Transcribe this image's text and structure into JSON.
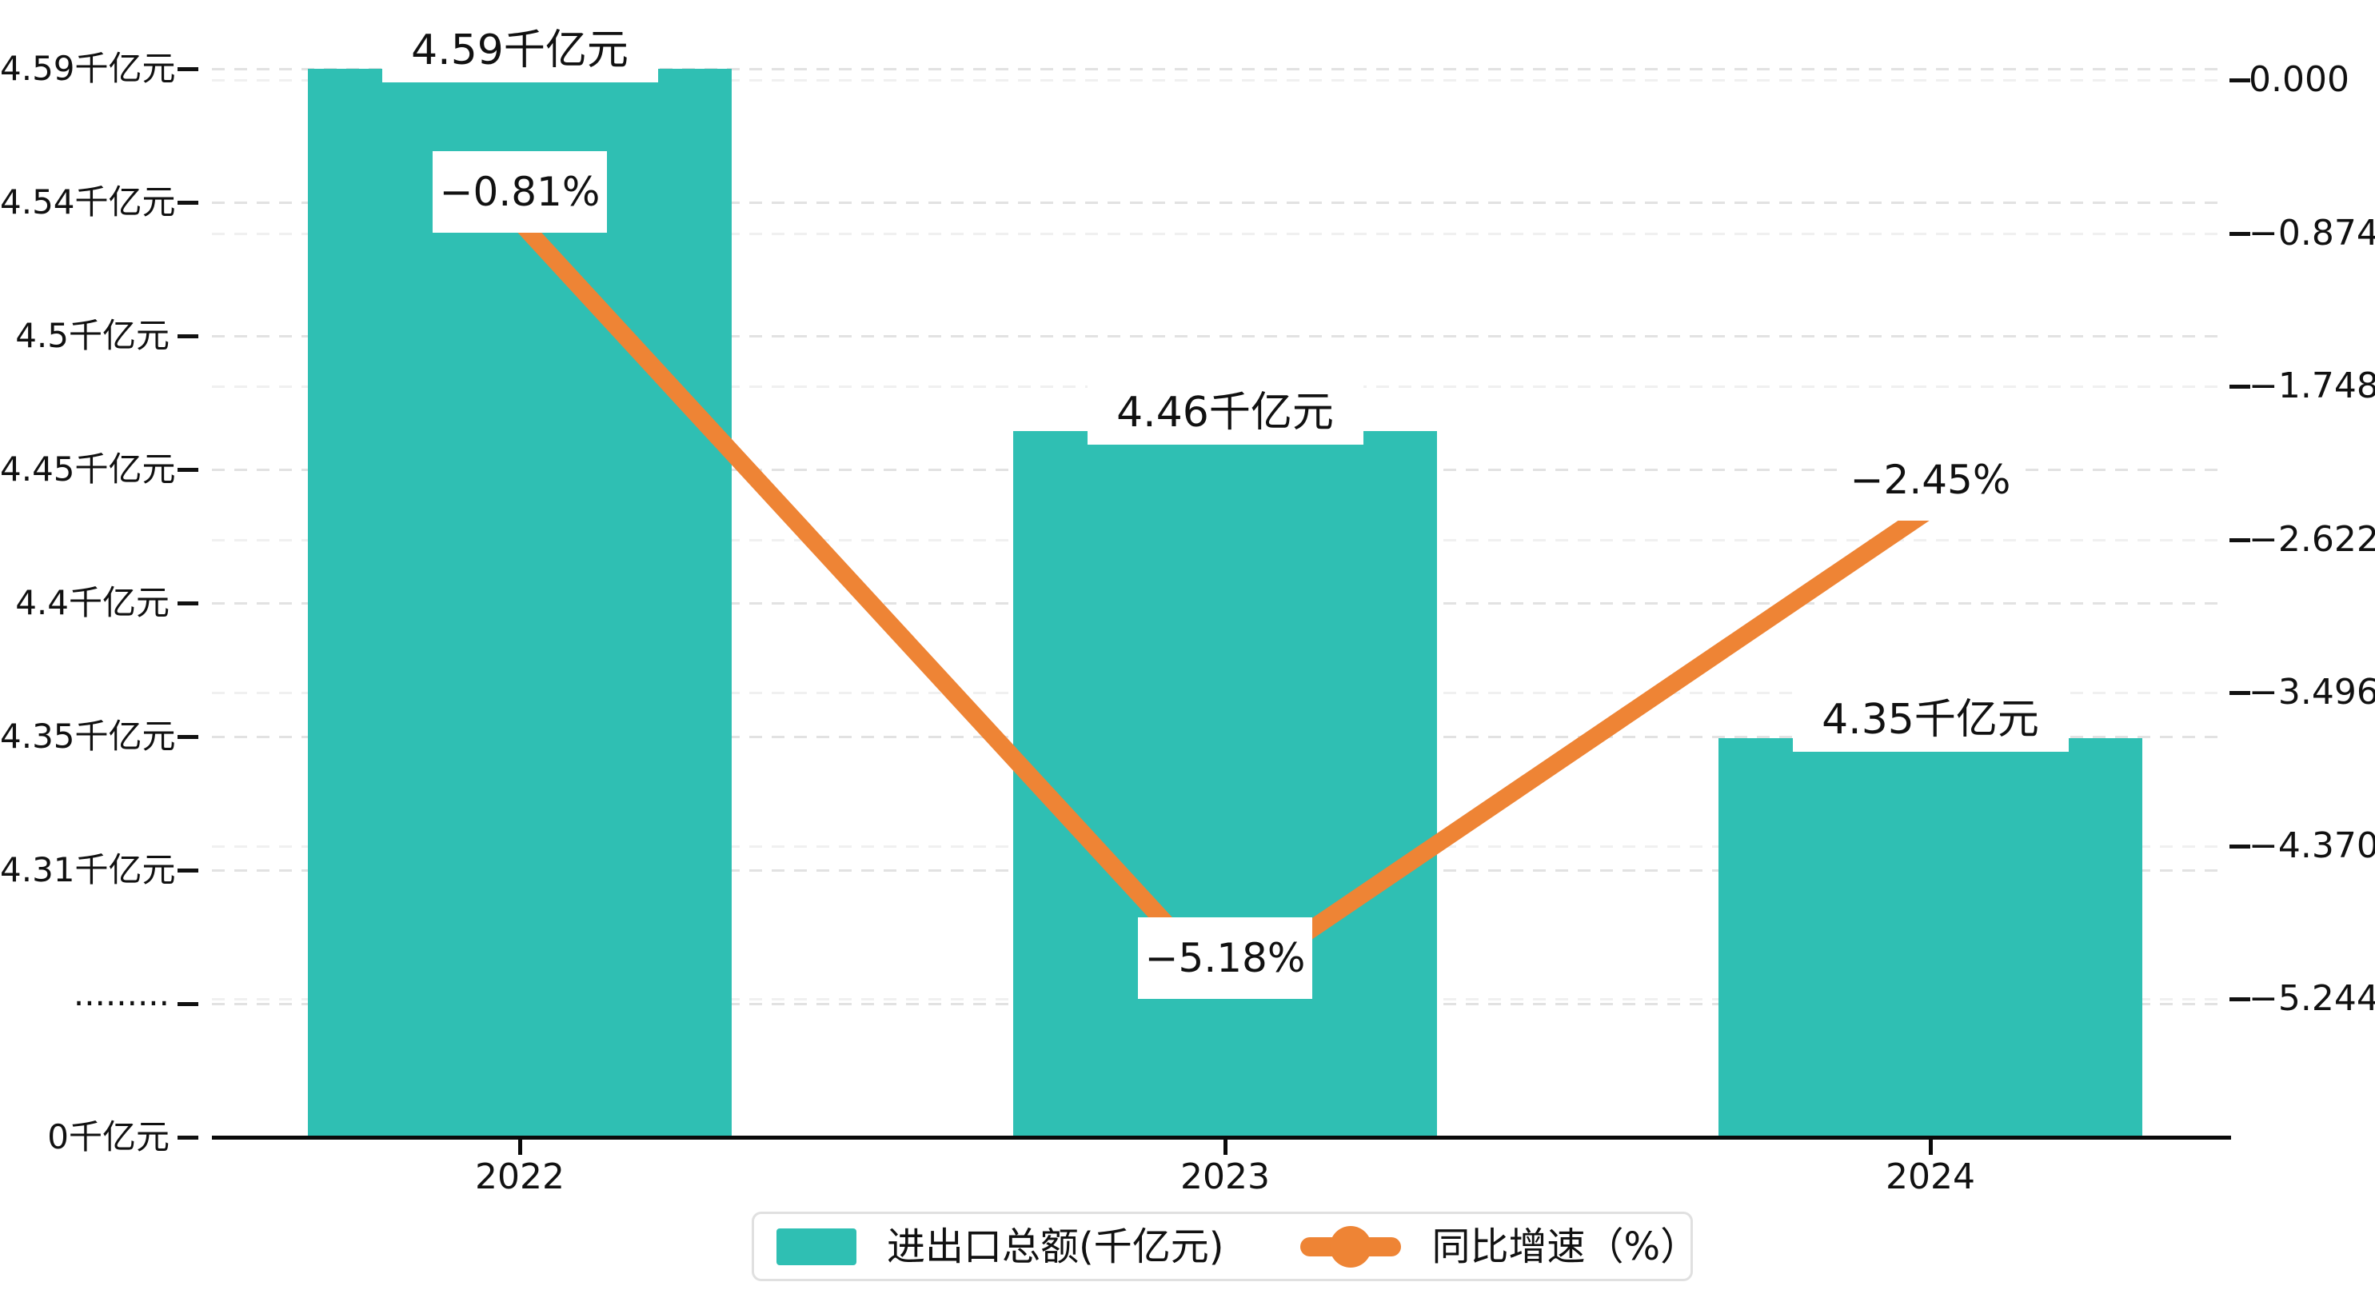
{
  "chart_data": {
    "type": "bar+line combo",
    "categories": [
      "2022",
      "2023",
      "2024"
    ],
    "series": [
      {
        "name": "进出口总额(千亿元)",
        "type": "bar",
        "values": [
          4.59,
          4.46,
          4.35
        ],
        "unit": "千亿元",
        "color": "#2FBFB3",
        "data_labels": [
          "4.59千亿元",
          "4.46千亿元",
          "4.35千亿元"
        ],
        "axis": "left"
      },
      {
        "name": "同比增速（%）",
        "type": "line",
        "values": [
          -0.81,
          -5.18,
          -2.45
        ],
        "unit": "%",
        "color": "#EE8435",
        "data_labels": [
          "−0.81%",
          "−5.18%",
          "−2.45%"
        ],
        "axis": "right"
      }
    ],
    "left_axis": {
      "tick_labels": [
        "4.59千亿元",
        "4.54千亿元",
        "4.5千亿元",
        "4.45千亿元",
        "4.4千亿元",
        "4.35千亿元",
        "4.31千亿元",
        "·········",
        "0千亿元"
      ],
      "broken_axis": true,
      "unit": "千亿元"
    },
    "right_axis": {
      "tick_labels": [
        "0.000",
        "−0.874",
        "−1.748",
        "−2.622",
        "−3.496",
        "−4.370",
        "−5.244"
      ],
      "range": [
        0,
        -5.244
      ],
      "step": -0.874,
      "unit": "%"
    },
    "legend": {
      "position": "bottom",
      "items": [
        {
          "label": "进出口总额(千亿元)",
          "marker": "bar-swatch",
          "color": "#2FBFB3"
        },
        {
          "label": "同比增速（%）",
          "marker": "line-with-dot",
          "color": "#EE8435"
        }
      ]
    },
    "grid": "dashed horizontal gridlines for both axes",
    "title": "",
    "xlabel": "",
    "ylabel": ""
  },
  "colors": {
    "bar": "#2FBFB3",
    "line": "#EE8435",
    "axis": "#0a0a0a",
    "gridline_major": "#e2e2e2",
    "gridline_minor": "#f0f0f0",
    "text": "#111111",
    "label_background": "#ffffff"
  }
}
